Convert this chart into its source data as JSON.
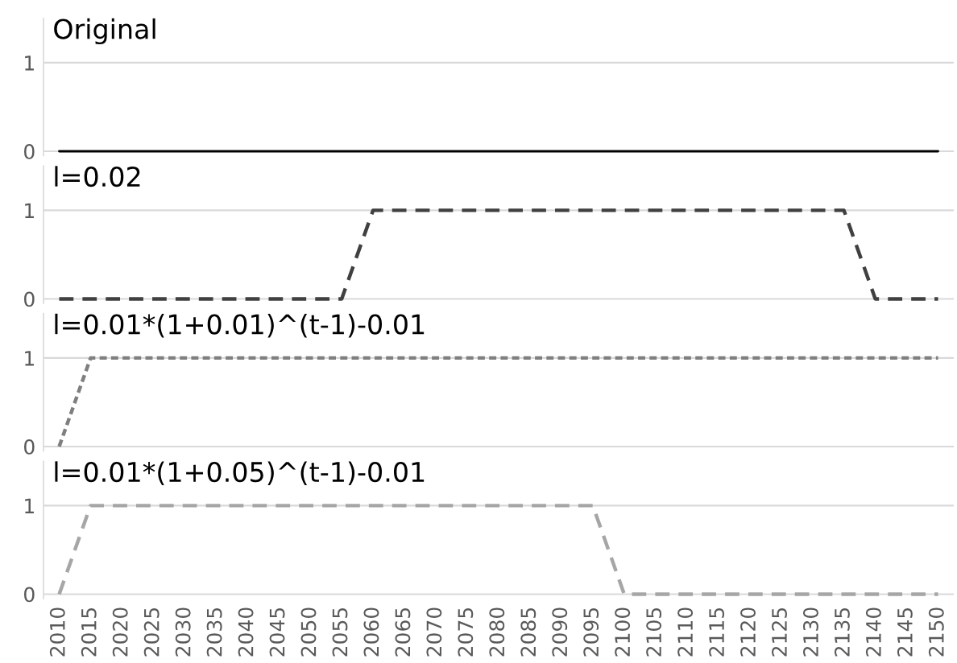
{
  "chart_data": [
    {
      "type": "line",
      "title": "Original",
      "categories": [
        "2010",
        "2015",
        "2020",
        "2025",
        "2030",
        "2035",
        "2040",
        "2045",
        "2050",
        "2055",
        "2060",
        "2065",
        "2070",
        "2075",
        "2080",
        "2085",
        "2090",
        "2095",
        "2100",
        "2105",
        "2110",
        "2115",
        "2120",
        "2125",
        "2130",
        "2135",
        "2140",
        "2145",
        "2150"
      ],
      "series": [
        {
          "color": "#000000",
          "values": [
            0,
            0,
            0,
            0,
            0,
            0,
            0,
            0,
            0,
            0,
            0,
            0,
            0,
            0,
            0,
            0,
            0,
            0,
            0,
            0,
            0,
            0,
            0,
            0,
            0,
            0,
            0,
            0,
            0
          ]
        }
      ],
      "ylim": [
        -0.05,
        1.5
      ],
      "yticks": [
        0,
        1
      ],
      "grid": "y",
      "line_style": "solid",
      "marker": "none",
      "tick_labels": "y"
    },
    {
      "type": "line",
      "title": "l=0.02",
      "categories": [
        "2010",
        "2015",
        "2020",
        "2025",
        "2030",
        "2035",
        "2040",
        "2045",
        "2050",
        "2055",
        "2060",
        "2065",
        "2070",
        "2075",
        "2080",
        "2085",
        "2090",
        "2095",
        "2100",
        "2105",
        "2110",
        "2115",
        "2120",
        "2125",
        "2130",
        "2135",
        "2140",
        "2145",
        "2150"
      ],
      "series": [
        {
          "color": "#404040",
          "values": [
            0,
            0,
            0,
            0,
            0,
            0,
            0,
            0,
            0,
            0,
            1,
            1,
            1,
            1,
            1,
            1,
            1,
            1,
            1,
            1,
            1,
            1,
            1,
            1,
            1,
            1,
            0,
            0,
            0
          ]
        }
      ],
      "ylim": [
        -0.05,
        1.5
      ],
      "yticks": [
        0,
        1
      ],
      "grid": "y",
      "line_style": "dashed",
      "marker": "none",
      "tick_labels": "y"
    },
    {
      "type": "line",
      "title": "l=0.01*(1+0.01)^(t-1)-0.01",
      "categories": [
        "2010",
        "2015",
        "2020",
        "2025",
        "2030",
        "2035",
        "2040",
        "2045",
        "2050",
        "2055",
        "2060",
        "2065",
        "2070",
        "2075",
        "2080",
        "2085",
        "2090",
        "2095",
        "2100",
        "2105",
        "2110",
        "2115",
        "2120",
        "2125",
        "2130",
        "2135",
        "2140",
        "2145",
        "2150"
      ],
      "series": [
        {
          "color": "#7f7f7f",
          "values": [
            0,
            1,
            1,
            1,
            1,
            1,
            1,
            1,
            1,
            1,
            1,
            1,
            1,
            1,
            1,
            1,
            1,
            1,
            1,
            1,
            1,
            1,
            1,
            1,
            1,
            1,
            1,
            1,
            1
          ]
        }
      ],
      "ylim": [
        -0.05,
        1.5
      ],
      "yticks": [
        0,
        1
      ],
      "grid": "y",
      "line_style": "dotted",
      "marker": "none",
      "tick_labels": "y"
    },
    {
      "type": "line",
      "title": "l=0.01*(1+0.05)^(t-1)-0.01",
      "categories": [
        "2010",
        "2015",
        "2020",
        "2025",
        "2030",
        "2035",
        "2040",
        "2045",
        "2050",
        "2055",
        "2060",
        "2065",
        "2070",
        "2075",
        "2080",
        "2085",
        "2090",
        "2095",
        "2100",
        "2105",
        "2110",
        "2115",
        "2120",
        "2125",
        "2130",
        "2135",
        "2140",
        "2145",
        "2150"
      ],
      "series": [
        {
          "color": "#a6a6a6",
          "values": [
            0,
            1,
            1,
            1,
            1,
            1,
            1,
            1,
            1,
            1,
            1,
            1,
            1,
            1,
            1,
            1,
            1,
            1,
            0,
            0,
            0,
            0,
            0,
            0,
            0,
            0,
            0,
            0,
            0
          ]
        }
      ],
      "ylim": [
        -0.05,
        1.5
      ],
      "yticks": [
        0,
        1
      ],
      "grid": "y",
      "line_style": "dashed",
      "marker": "none"
    }
  ]
}
